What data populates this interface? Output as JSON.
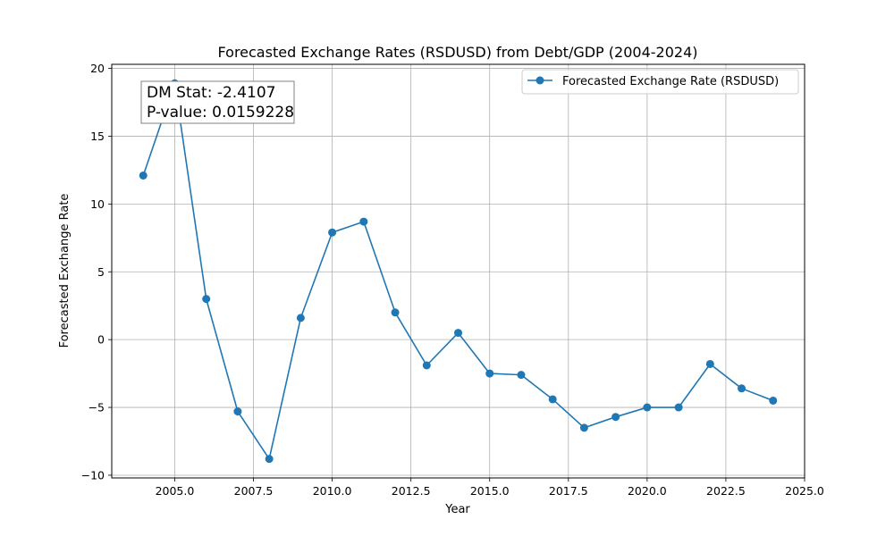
{
  "chart_data": {
    "type": "line",
    "title": "Forecasted Exchange Rates (RSDUSD) from Debt/GDP (2004-2024)",
    "xlabel": "Year",
    "ylabel": "Forecasted Exchange Rate",
    "xlim": [
      2003.0,
      2025.0
    ],
    "ylim": [
      -10.2,
      20.3
    ],
    "x_ticks": [
      2005.0,
      2007.5,
      2010.0,
      2012.5,
      2015.0,
      2017.5,
      2020.0,
      2022.5,
      2025.0
    ],
    "x_tick_labels": [
      "2005.0",
      "2007.5",
      "2010.0",
      "2012.5",
      "2015.0",
      "2017.5",
      "2020.0",
      "2022.5",
      "2025.0"
    ],
    "y_ticks": [
      -10,
      -5,
      0,
      5,
      10,
      15,
      20
    ],
    "y_tick_labels": [
      "−10",
      "−5",
      "0",
      "5",
      "10",
      "15",
      "20"
    ],
    "grid": true,
    "legend_position": "top-right",
    "series": [
      {
        "name": "Forecasted Exchange Rate (RSDUSD)",
        "color": "#1f77b4",
        "marker": "circle",
        "x": [
          2004,
          2005,
          2006,
          2007,
          2008,
          2009,
          2010,
          2011,
          2012,
          2013,
          2014,
          2015,
          2016,
          2017,
          2018,
          2019,
          2020,
          2021,
          2022,
          2023,
          2024
        ],
        "y": [
          12.1,
          18.9,
          3.0,
          -5.3,
          -8.8,
          1.6,
          7.9,
          8.7,
          2.0,
          -1.9,
          0.5,
          -2.5,
          -2.6,
          -4.4,
          -6.5,
          -5.7,
          -5.0,
          -5.0,
          -1.8,
          -3.6,
          -4.5
        ]
      }
    ],
    "annotation": {
      "lines": [
        "DM Stat: -2.4107",
        "P-value: 0.0159228"
      ],
      "position": "top-left"
    }
  }
}
